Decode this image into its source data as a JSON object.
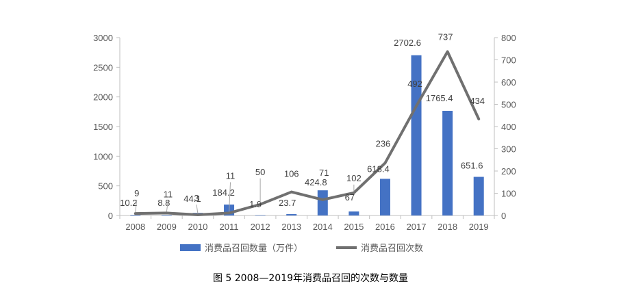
{
  "caption": "图 5 2008—2019年消费品召回的次数与数量",
  "chart_data": {
    "type": "bar+line",
    "categories": [
      "2008",
      "2009",
      "2010",
      "2011",
      "2012",
      "2013",
      "2014",
      "2015",
      "2016",
      "2017",
      "2018",
      "2019"
    ],
    "series": [
      {
        "name": "消费品召回数量（万件）",
        "kind": "bar",
        "axis": "left",
        "color": "#4472C4",
        "values": [
          10.2,
          8.8,
          44.1,
          184.2,
          1.9,
          23.7,
          424.8,
          67,
          618.4,
          2702.6,
          1765.4,
          651.6
        ],
        "labels": [
          "10.2",
          "8.8",
          "44.1",
          "184.2",
          "1.9",
          "23.7",
          "424.8",
          "67",
          "618.4",
          "2702.6",
          "1765.4",
          "651.6"
        ]
      },
      {
        "name": "消费品召回次数",
        "kind": "line",
        "axis": "right",
        "color": "#707070",
        "values": [
          9,
          11,
          3,
          11,
          50,
          106,
          71,
          102,
          236,
          492,
          737,
          434
        ],
        "labels": [
          "9",
          "11",
          "3",
          "11",
          "50",
          "106",
          "71",
          "102",
          "236",
          "492",
          "737",
          "434"
        ]
      }
    ],
    "y_left": {
      "min": 0,
      "max": 3000,
      "step": 500,
      "ticks": [
        "0",
        "500",
        "1000",
        "1500",
        "2000",
        "2500",
        "3000"
      ]
    },
    "y_right": {
      "min": 0,
      "max": 800,
      "step": 100,
      "ticks": [
        "0",
        "100",
        "200",
        "300",
        "400",
        "500",
        "600",
        "700",
        "800"
      ]
    },
    "legend_position": "bottom-center",
    "grid": false
  }
}
